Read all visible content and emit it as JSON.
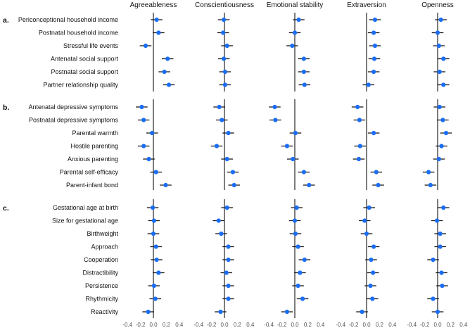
{
  "chart_data": {
    "type": "forest",
    "xlim": [
      -0.4,
      0.4
    ],
    "xticks": [
      "-0.4",
      "-0.2",
      "0.0",
      "0.2",
      "0.4"
    ],
    "xtick_values": [
      -0.4,
      -0.2,
      0,
      0.2,
      0.4
    ],
    "ci_halfwidth": 0.09,
    "colors": {
      "point": "#1a6ef5",
      "ci": "#111111",
      "zero_line": "#444444"
    },
    "panels": [
      "Agreeableness",
      "Conscientiousness",
      "Emotional stability",
      "Extraversion",
      "Openness"
    ],
    "sections": [
      {
        "label": "a.",
        "rows": [
          "Periconceptional household income",
          "Postnatal household income",
          "Stressful life events",
          "Antenatal social support",
          "Postnatal social support",
          "Partner relationship quality"
        ]
      },
      {
        "label": "b.",
        "rows": [
          "Antenatal depressive symptoms",
          "Postnatal depressive symptoms",
          "Parental warmth",
          "Hostile parenting",
          "Anxious parenting",
          "Parental self-efficacy",
          "Parent-infant bond"
        ]
      },
      {
        "label": "c.",
        "rows": [
          "Gestational age at birth",
          "Size for gestational age",
          "Birthweight",
          "Approach",
          "Cooperation",
          "Distractibility",
          "Persistence",
          "Rhythmicity",
          "Reactivity"
        ]
      }
    ],
    "estimates": {
      "Agreeableness": [
        [
          0.05,
          0.08,
          -0.12,
          0.22,
          0.17,
          0.24
        ],
        [
          -0.18,
          -0.15,
          -0.02,
          -0.15,
          -0.07,
          0.04,
          0.19
        ],
        [
          -0.01,
          0.01,
          0.0,
          0.04,
          0.05,
          0.08,
          0.01,
          0.03,
          -0.08
        ]
      ],
      "Conscientiousness": [
        [
          -0.01,
          -0.02,
          0.04,
          -0.01,
          0.01,
          0.01
        ],
        [
          -0.08,
          -0.04,
          0.06,
          -0.12,
          0.04,
          0.13,
          0.15
        ],
        [
          0.04,
          -0.09,
          -0.05,
          0.06,
          0.06,
          0.03,
          0.06,
          0.06,
          -0.06
        ]
      ],
      "Emotional stability": [
        [
          0.06,
          0.0,
          -0.04,
          0.14,
          0.14,
          0.15
        ],
        [
          -0.31,
          -0.3,
          0.01,
          -0.12,
          -0.03,
          0.14,
          0.22
        ],
        [
          0.03,
          0.0,
          0.01,
          0.05,
          0.15,
          0.08,
          0.05,
          0.12,
          -0.12
        ]
      ],
      "Extraversion": [
        [
          0.13,
          0.11,
          0.13,
          0.12,
          0.11,
          0.03
        ],
        [
          -0.14,
          -0.11,
          0.11,
          -0.1,
          -0.12,
          0.15,
          0.18
        ],
        [
          0.04,
          -0.03,
          0.0,
          0.11,
          0.07,
          0.1,
          0.06,
          0.09,
          -0.07
        ]
      ],
      "Openness": [
        [
          0.05,
          0.0,
          0.02,
          0.09,
          0.03,
          0.09
        ],
        [
          0.03,
          0.08,
          0.13,
          0.06,
          0.02,
          -0.14,
          -0.11
        ],
        [
          0.09,
          -0.01,
          0.04,
          0.04,
          -0.07,
          0.06,
          0.07,
          -0.07,
          0.0
        ]
      ]
    }
  }
}
